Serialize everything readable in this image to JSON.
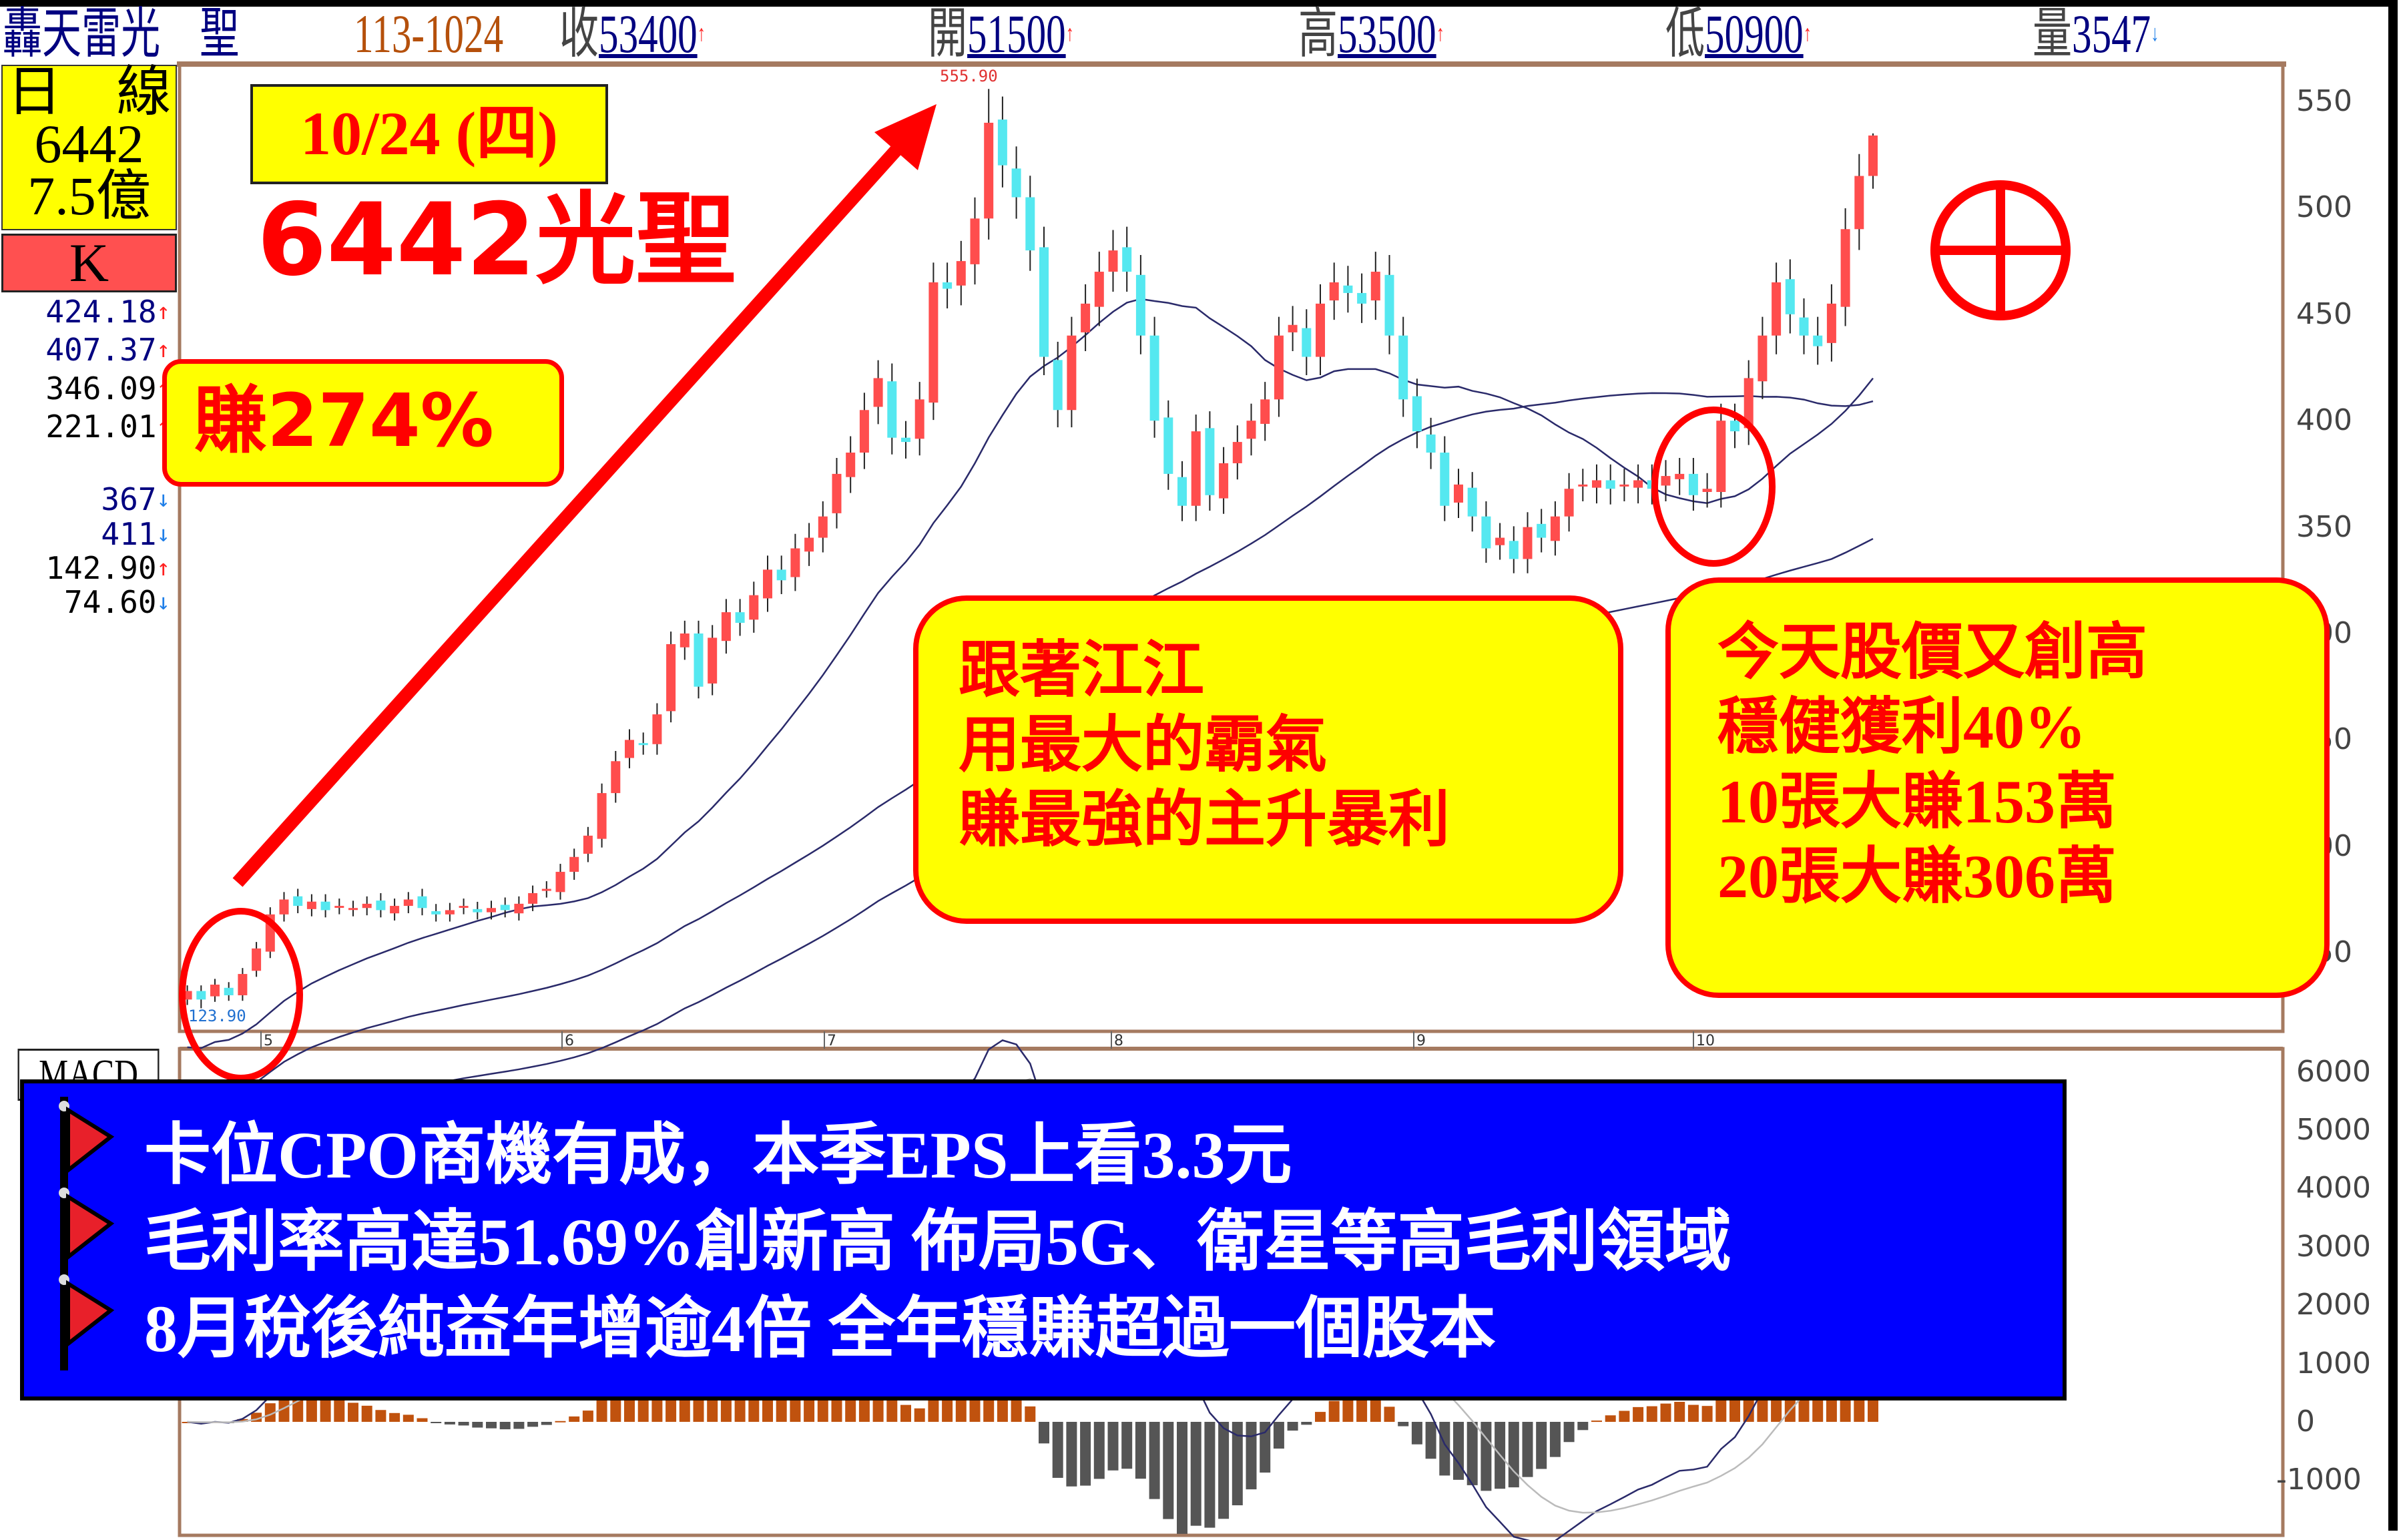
{
  "header": {
    "stock_name": "轟天雷光　聖",
    "date_code": "113-1024",
    "close_label": "收",
    "close_value": "53400",
    "close_dir": "up",
    "open_label": "開",
    "open_value": "51500",
    "open_dir": "up",
    "high_label": "高",
    "high_value": "53500",
    "high_dir": "up",
    "low_label": "低",
    "low_value": "50900",
    "low_dir": "up",
    "volume_label": "量",
    "volume_value": "3547",
    "volume_dir": "down"
  },
  "left_panel": {
    "period": "日　線",
    "code": "6442",
    "turnover": "7.5億",
    "chart_mode": "K",
    "values": [
      {
        "v": "424.18",
        "dir": "up",
        "color": "#000080"
      },
      {
        "v": "407.37",
        "dir": "up",
        "color": "#000080"
      },
      {
        "v": "346.09",
        "dir": "up",
        "color": "#000000"
      },
      {
        "v": "221.01",
        "dir": "up",
        "color": "#000000"
      },
      {
        "v": "367",
        "dir": "down",
        "color": "#000080"
      },
      {
        "v": "411",
        "dir": "down",
        "color": "#000080"
      },
      {
        "v": "142.90",
        "dir": "up",
        "color": "#000000"
      },
      {
        "v": "74.60",
        "dir": "down",
        "color": "#000000"
      }
    ],
    "macd_label": "MACD"
  },
  "annotations": {
    "date_box": "10/24 (四)",
    "title": "6442光聖",
    "gain": "賺274%",
    "bubble1": [
      "跟著江江",
      "用最大的霸氣",
      "賺最強的主升暴利"
    ],
    "bubble2": [
      "今天股價又創高",
      "穩健獲利40%",
      "10張大賺153萬",
      "20張大賺306萬"
    ],
    "news": [
      "卡位CPO商機有成，本季EPS上看3.3元",
      "毛利率高達51.69%創新高 佈局5G、衛星等高毛利領域",
      "8月稅後純益年增逾4倍 全年穩賺超過一個股本"
    ]
  },
  "colors": {
    "up": "#ff4d4d",
    "down": "#55e8f0",
    "accent": "#ff0000",
    "highlight": "#ffff00",
    "news_bg": "#0000ff",
    "hist_pos": "#c0520e",
    "hist_neg": "#555555",
    "ma": "#2a2a6a"
  },
  "chart_data": {
    "type": "candlestick",
    "price_axis": {
      "ticks": [
        550,
        500,
        450,
        400,
        350,
        300,
        250,
        200,
        150
      ],
      "range": [
        113,
        567
      ]
    },
    "macd_axis": {
      "ticks": [
        "6000",
        "5000",
        "4000",
        "3000",
        "2000",
        "1000",
        "0",
        "-1000"
      ],
      "range": [
        -1950,
        6350
      ]
    },
    "month_labels": [
      "5",
      "6",
      "7",
      "8",
      "9",
      "10"
    ],
    "high_label": "555.90",
    "low_label": "123.90",
    "close": [
      132,
      128,
      135,
      130,
      140,
      152,
      168,
      175,
      172,
      174,
      170,
      172,
      171,
      173,
      170,
      172,
      175,
      171,
      168,
      170,
      172,
      169,
      171,
      170,
      173,
      178,
      180,
      188,
      195,
      205,
      225,
      240,
      250,
      248,
      262,
      295,
      300,
      275,
      298,
      310,
      305,
      318,
      330,
      325,
      340,
      345,
      355,
      375,
      385,
      405,
      420,
      392,
      390,
      410,
      465,
      462,
      475,
      495,
      540,
      520,
      505,
      480,
      430,
      405,
      440,
      455,
      470,
      480,
      470,
      440,
      400,
      375,
      360,
      395,
      365,
      380,
      390,
      400,
      410,
      440,
      445,
      430,
      455,
      465,
      460,
      455,
      470,
      440,
      410,
      395,
      385,
      360,
      370,
      355,
      340,
      345,
      335,
      350,
      345,
      355,
      368,
      370,
      372,
      368,
      370,
      372,
      368,
      374,
      375,
      365,
      368,
      400,
      395,
      420,
      440,
      465,
      450,
      440,
      435,
      455,
      490,
      515,
      534
    ],
    "last_day": {
      "open": 515,
      "high": 535,
      "low": 509,
      "close": 534
    }
  }
}
